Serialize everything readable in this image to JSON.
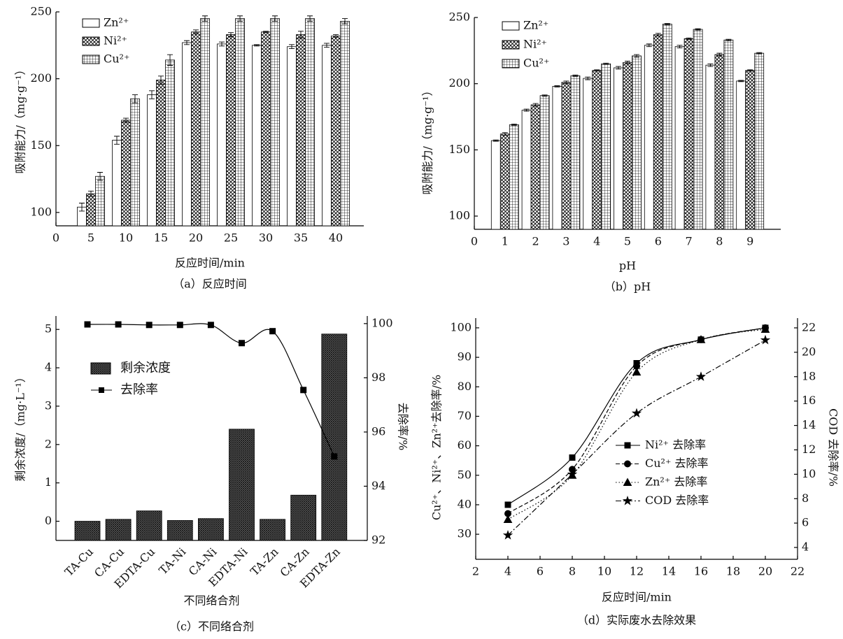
{
  "chart_data": [
    {
      "type": "bar",
      "caption": "（a）反应时间",
      "xlabel": "反应时间/min",
      "ylabel": "吸附能力/（mg·g⁻¹）",
      "x": [
        5,
        10,
        15,
        20,
        25,
        30,
        35,
        40
      ],
      "xlim": [
        0,
        44
      ],
      "xticks": [
        0,
        5,
        10,
        15,
        20,
        25,
        30,
        35,
        40
      ],
      "ylim": [
        90,
        250
      ],
      "yticks": [
        100,
        150,
        200,
        250
      ],
      "series": [
        {
          "name": "Zn²⁺",
          "color": "#000000",
          "hatch": "none",
          "values": [
            104,
            154,
            188,
            227,
            226,
            225,
            224,
            225
          ],
          "errors": [
            3,
            3,
            3,
            1.5,
            1.5,
            0.5,
            1.5,
            1.5
          ]
        },
        {
          "name": "Ni²⁺",
          "color": "#000000",
          "hatch": "cross",
          "values": [
            114,
            169,
            199,
            235,
            233,
            235,
            233,
            232
          ],
          "errors": [
            2,
            1.5,
            3,
            1.5,
            1.5,
            0.5,
            2.5,
            1
          ]
        },
        {
          "name": "Cu²⁺",
          "color": "#000000",
          "hatch": "grid",
          "values": [
            127,
            185,
            214,
            245,
            245,
            245,
            245,
            243
          ],
          "errors": [
            3,
            3,
            4,
            2,
            2,
            2,
            2,
            2
          ]
        }
      ]
    },
    {
      "type": "bar",
      "caption": "（b）pH",
      "xlabel": "pH",
      "ylabel": "吸附能力/（mg·g⁻¹）",
      "x": [
        1,
        2,
        3,
        4,
        5,
        6,
        7,
        8,
        9
      ],
      "xlim": [
        0,
        10
      ],
      "xticks": [
        0,
        1,
        2,
        3,
        4,
        5,
        6,
        7,
        8,
        9
      ],
      "ylim": [
        90,
        250
      ],
      "yticks": [
        100,
        150,
        200,
        250
      ],
      "series": [
        {
          "name": "Zn²⁺",
          "color": "#000000",
          "hatch": "none",
          "values": [
            157,
            180,
            198,
            204,
            212,
            229,
            228,
            214,
            202
          ],
          "errors": [
            0.5,
            0.8,
            0.5,
            1,
            1,
            1,
            1,
            1,
            0.5
          ]
        },
        {
          "name": "Ni²⁺",
          "color": "#000000",
          "hatch": "cross",
          "values": [
            162,
            184,
            201,
            210,
            216,
            237,
            234,
            222,
            210
          ],
          "errors": [
            1,
            1,
            1,
            0.5,
            1,
            1,
            0.5,
            1,
            0.5
          ]
        },
        {
          "name": "Cu²⁺",
          "color": "#000000",
          "hatch": "grid",
          "values": [
            169,
            191,
            206,
            215,
            221,
            245,
            241,
            233,
            223
          ],
          "errors": [
            0.5,
            0.5,
            0.5,
            0.5,
            1,
            0.5,
            0.5,
            0.5,
            0.5
          ]
        }
      ]
    },
    {
      "type": "bar",
      "caption": "（c）不同络合剂",
      "xlabel": "不同络合剂",
      "ylabel": "剩余浓度/（mg·L⁻¹）",
      "y2label": "去除率/%",
      "categories": [
        "TA-Cu",
        "CA-Cu",
        "EDTA-Cu",
        "TA-Ni",
        "CA-Ni",
        "EDTA-Ni",
        "TA-Zn",
        "CA-Zn",
        "EDTA-Zn"
      ],
      "ylim": [
        -0.5,
        5.35
      ],
      "yticks": [
        0,
        1,
        2,
        3,
        4,
        5
      ],
      "y2lim": [
        92,
        100.28
      ],
      "y2ticks": [
        92,
        94,
        96,
        98,
        100
      ],
      "series": [
        {
          "name": "剩余浓度",
          "color": "#000000",
          "hatch": "dense",
          "values": [
            0,
            0.05,
            0.27,
            0.02,
            0.07,
            2.4,
            0.05,
            0.68,
            4.88
          ]
        },
        {
          "name": "去除率",
          "type": "line",
          "axis": "y2",
          "marker": "square",
          "color": "#000000",
          "values": [
            99.97,
            99.97,
            99.95,
            99.95,
            99.95,
            99.28,
            99.72,
            97.55,
            95.1
          ]
        }
      ]
    },
    {
      "type": "line",
      "caption": "（d）实际废水去除效果",
      "xlabel": "反应时间/min",
      "ylabel": "Cu²⁺、Ni²⁺、Zn²⁺去除率/%",
      "y2label": "COD 去除率/%",
      "x": [
        4,
        8,
        12,
        16,
        20
      ],
      "xlim": [
        2,
        22
      ],
      "xticks": [
        2,
        4,
        6,
        8,
        10,
        12,
        14,
        16,
        18,
        20,
        22
      ],
      "ylim": [
        21.5,
        103.3
      ],
      "yticks": [
        30,
        40,
        50,
        60,
        70,
        80,
        90,
        100
      ],
      "y2lim": [
        3.03,
        22.8
      ],
      "y2ticks": [
        4,
        6,
        8,
        10,
        12,
        14,
        16,
        18,
        20,
        22
      ],
      "series": [
        {
          "name": "Ni²⁺ 去除率",
          "color": "#000000",
          "dash": "solid",
          "marker": "square",
          "values": [
            40,
            56,
            88,
            96,
            100
          ]
        },
        {
          "name": "Cu²⁺ 去除率",
          "color": "#000000",
          "dash": "dashed",
          "marker": "circle",
          "values": [
            37,
            52,
            87,
            96,
            100
          ]
        },
        {
          "name": "Zn²⁺ 去除率",
          "color": "#000000",
          "dash": "dotted",
          "marker": "triangle",
          "values": [
            35,
            50,
            85,
            96,
            99.5
          ]
        },
        {
          "name": "COD 去除率",
          "color": "#000000",
          "dash": "dashdot",
          "marker": "star",
          "axis": "y2",
          "values": [
            5,
            10,
            15,
            18,
            21
          ]
        }
      ]
    }
  ]
}
